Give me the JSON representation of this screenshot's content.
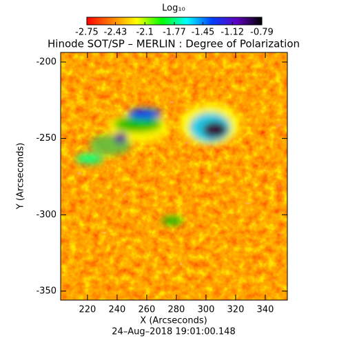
{
  "chart_data": {
    "type": "image",
    "title": "Hinode SOT/SP – MERLIN : Degree of Polarization",
    "subtitle": "24–Aug–2018 19:01:00.148",
    "x_label": "X (Arcseconds)",
    "y_label": "Y (Arcseconds)",
    "xlim": [
      201.9,
      354.9
    ],
    "xticks": [
      220,
      240,
      260,
      280,
      300,
      320,
      340
    ],
    "ylim": [
      -355.9,
      -193.7
    ],
    "yticks": [
      -350,
      -300,
      -250,
      -200
    ],
    "colorbar": {
      "label": "Log₁₀",
      "lim": [
        -2.75,
        -0.79
      ],
      "ticks": [
        -2.75,
        -2.43,
        -2.1,
        -1.77,
        -1.45,
        -1.12,
        -0.79
      ],
      "colors": [
        "#ff0000",
        "#ff8000",
        "#ffff00",
        "#00ff00",
        "#00ffff",
        "#0040ff",
        "#6000c0",
        "#000000"
      ]
    }
  }
}
